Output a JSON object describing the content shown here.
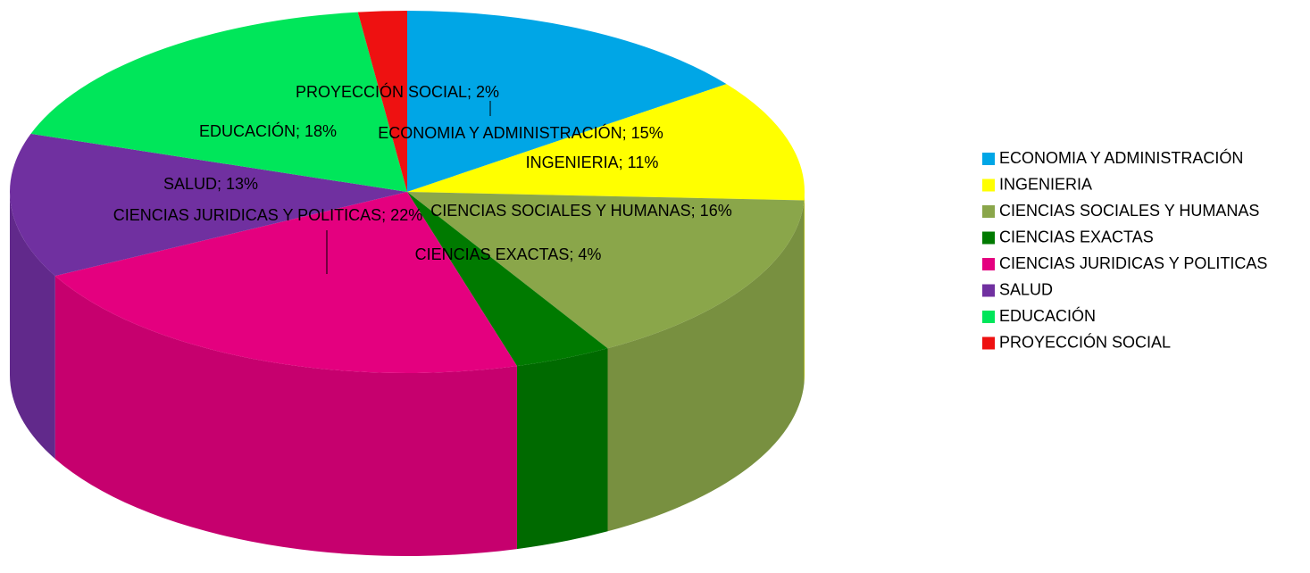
{
  "chart_data": {
    "type": "pie",
    "categories": [
      "ECONOMIA Y ADMINISTRACIÓN",
      "INGENIERIA",
      "CIENCIAS SOCIALES Y HUMANAS",
      "CIENCIAS EXACTAS",
      "CIENCIAS JURIDICAS Y POLITICAS",
      "SALUD",
      "EDUCACIÓN",
      "PROYECCIÓN SOCIAL"
    ],
    "values": [
      15,
      11,
      16,
      4,
      22,
      13,
      18,
      2
    ],
    "value_labels": [
      "ECONOMIA Y ADMINISTRACIÓN; 15%",
      "INGENIERIA; 11%",
      "CIENCIAS SOCIALES Y HUMANAS; 16%",
      "CIENCIAS EXACTAS; 4%",
      "CIENCIAS JURIDICAS Y POLITICAS; 22%",
      "SALUD; 13%",
      "EDUCACIÓN; 18%",
      "PROYECCIÓN SOCIAL; 2%"
    ],
    "colors": [
      "#00a6e6",
      "#ffff00",
      "#8aa64a",
      "#007a00",
      "#e4007f",
      "#7030a0",
      "#00e65a",
      "#ee1111"
    ],
    "legend": "right"
  }
}
